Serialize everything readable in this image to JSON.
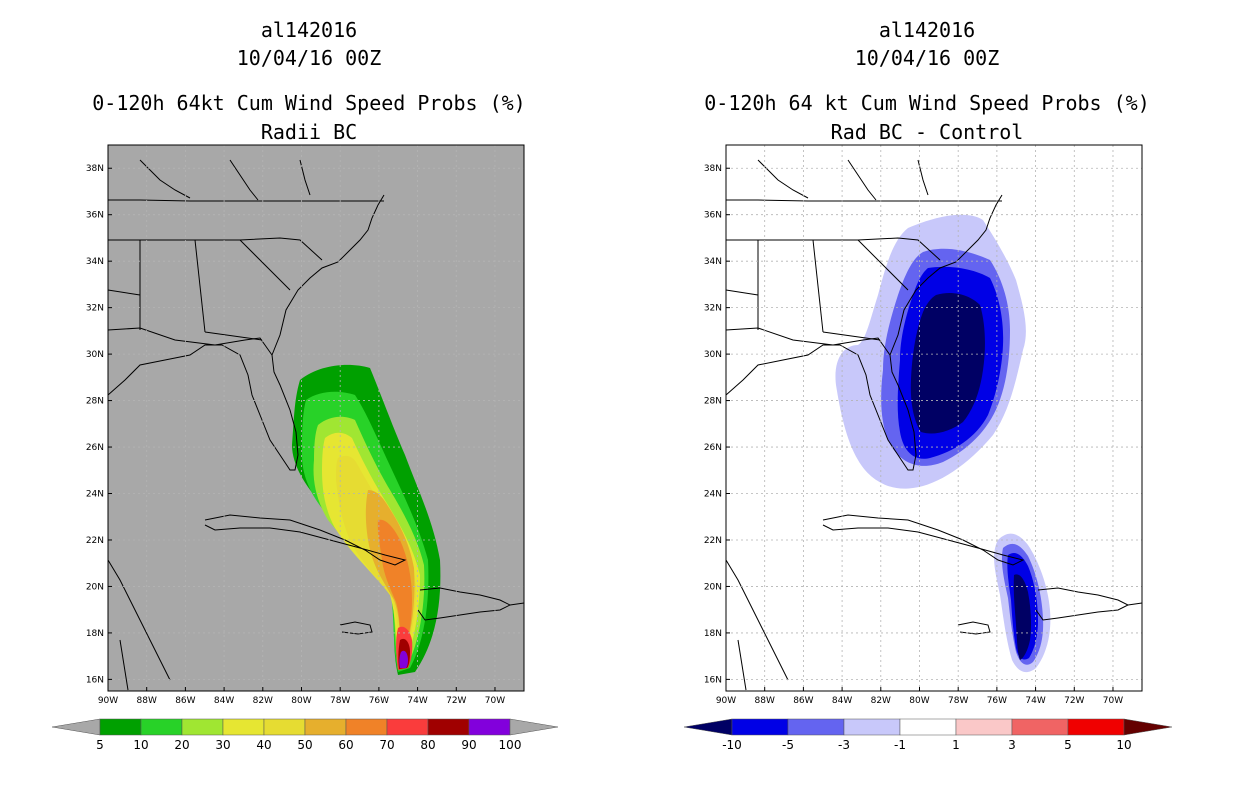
{
  "left": {
    "title_storm": "al142016",
    "title_time": "10/04/16 00Z",
    "title_product": "0-120h 64kt Cum Wind Speed Probs (%)",
    "title_sub": "Radii BC",
    "background_color": "#a8a8a8",
    "colorbar": {
      "labels": [
        "5",
        "10",
        "20",
        "30",
        "40",
        "50",
        "60",
        "70",
        "80",
        "90",
        "100"
      ],
      "colors": [
        "#00a000",
        "#28d228",
        "#a0e632",
        "#e6e632",
        "#e6dc32",
        "#e6af2d",
        "#f08228",
        "#fa3c3c",
        "#a00000",
        "#8200dc"
      ],
      "under_color": "#a8a8a8",
      "over_color": "#a8a8a8"
    }
  },
  "right": {
    "title_storm": "al142016",
    "title_time": "10/04/16 00Z",
    "title_product": "0-120h 64 kt Cum Wind Speed Probs (%)",
    "title_sub": "Rad BC - Control",
    "background_color": "#ffffff",
    "colorbar": {
      "labels": [
        "-10",
        "-5",
        "-3",
        "-1",
        "1",
        "3",
        "5",
        "10"
      ],
      "colors": [
        "#0000e6",
        "#6464f0",
        "#c8c8fa",
        "#ffffff",
        "#fac8c8",
        "#f06464",
        "#f00000"
      ],
      "under_color": "#000064",
      "over_color": "#640000"
    }
  },
  "map": {
    "lat_labels": [
      "38N",
      "36N",
      "34N",
      "32N",
      "30N",
      "28N",
      "26N",
      "24N",
      "22N",
      "20N",
      "18N",
      "16N"
    ],
    "lon_labels": [
      "90W",
      "88W",
      "86W",
      "84W",
      "82W",
      "80W",
      "78W",
      "76W",
      "74W",
      "72W",
      "70W"
    ],
    "lat_min": 15.5,
    "lat_max": 39.0,
    "lon_min": -90.0,
    "lon_max": -68.5,
    "grid": true
  }
}
